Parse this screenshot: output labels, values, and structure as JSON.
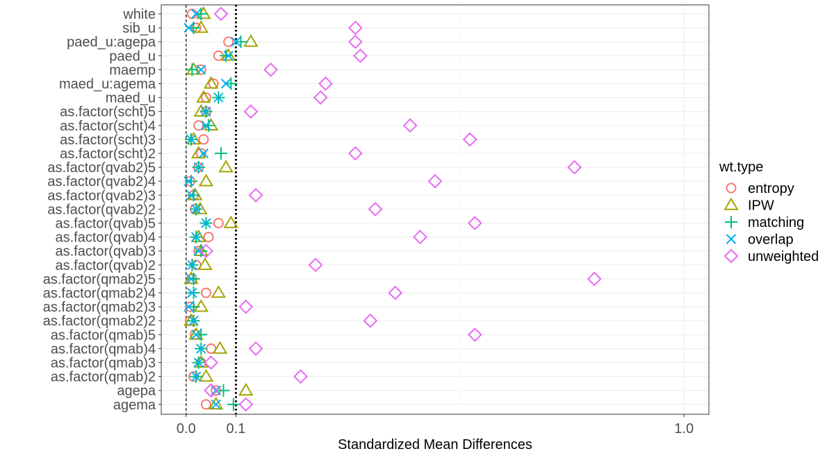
{
  "chart_data": {
    "type": "scatter",
    "xlabel": "Standardized Mean Differences",
    "xlim": [
      -0.05,
      1.05
    ],
    "xticks": [
      0.0,
      0.1,
      1.0
    ],
    "xtick_labels": [
      "0.0",
      "0.1",
      "1.0"
    ],
    "vlines": [
      {
        "x": 0.0,
        "style": "dashed"
      },
      {
        "x": 0.1,
        "style": "dotted"
      }
    ],
    "grid": true,
    "legend_title": "wt.type",
    "legend_position": "right",
    "categories": [
      "white",
      "sib_u",
      "paed_u:agepa",
      "paed_u",
      "maemp",
      "maed_u:agema",
      "maed_u",
      "as.factor(scht)5",
      "as.factor(scht)4",
      "as.factor(scht)3",
      "as.factor(scht)2",
      "as.factor(qvab2)5",
      "as.factor(qvab2)4",
      "as.factor(qvab2)3",
      "as.factor(qvab2)2",
      "as.factor(qvab)5",
      "as.factor(qvab)4",
      "as.factor(qvab)3",
      "as.factor(qvab)2",
      "as.factor(qmab2)5",
      "as.factor(qmab2)4",
      "as.factor(qmab2)3",
      "as.factor(qmab2)2",
      "as.factor(qmab)5",
      "as.factor(qmab)4",
      "as.factor(qmab)3",
      "as.factor(qmab)2",
      "agepa",
      "agema"
    ],
    "series": [
      {
        "name": "entropy",
        "shape": "circle",
        "color": "#F8766D",
        "values": [
          0.012,
          0.02,
          0.085,
          0.065,
          0.03,
          0.055,
          0.04,
          0.04,
          0.025,
          0.035,
          0.03,
          0.025,
          0.008,
          0.015,
          0.018,
          0.065,
          0.045,
          0.025,
          0.02,
          0.012,
          0.04,
          0.008,
          0.008,
          0.018,
          0.05,
          0.03,
          0.015,
          0.06,
          0.04
        ]
      },
      {
        "name": "IPW",
        "shape": "triangle",
        "color": "#A3A500",
        "values": [
          0.035,
          0.03,
          0.13,
          0.085,
          0.015,
          0.05,
          0.035,
          0.03,
          0.05,
          0.015,
          0.025,
          0.08,
          0.04,
          0.018,
          0.028,
          0.09,
          0.025,
          0.03,
          0.038,
          0.01,
          0.065,
          0.03,
          0.01,
          0.02,
          0.068,
          0.03,
          0.04,
          0.12,
          0.06
        ]
      },
      {
        "name": "matching",
        "shape": "plus",
        "color": "#00BF7D",
        "values": [
          0.03,
          0.015,
          0.11,
          0.08,
          0.012,
          0.09,
          0.065,
          0.04,
          0.045,
          0.01,
          0.07,
          0.025,
          0.01,
          0.015,
          0.02,
          0.04,
          0.02,
          0.03,
          0.012,
          0.015,
          0.015,
          0.015,
          0.015,
          0.03,
          0.03,
          0.025,
          0.02,
          0.075,
          0.095
        ]
      },
      {
        "name": "overlap",
        "shape": "cross",
        "color": "#00B0F6",
        "values": [
          0.02,
          0.005,
          0.1,
          0.085,
          0.03,
          0.08,
          0.065,
          0.04,
          0.04,
          0.01,
          0.035,
          0.025,
          0.005,
          0.01,
          0.02,
          0.04,
          0.02,
          0.025,
          0.012,
          0.01,
          0.012,
          0.005,
          0.015,
          0.02,
          0.03,
          0.025,
          0.02,
          0.06,
          0.06
        ]
      },
      {
        "name": "unweighted",
        "shape": "diamond",
        "color": "#E76BF3",
        "values": [
          0.07,
          0.34,
          0.34,
          0.35,
          0.17,
          0.28,
          0.27,
          0.13,
          0.45,
          0.57,
          0.34,
          0.78,
          0.5,
          0.14,
          0.38,
          0.58,
          0.47,
          0.04,
          0.26,
          0.82,
          0.42,
          0.12,
          0.37,
          0.58,
          0.14,
          0.05,
          0.23,
          0.05,
          0.12
        ]
      }
    ]
  }
}
